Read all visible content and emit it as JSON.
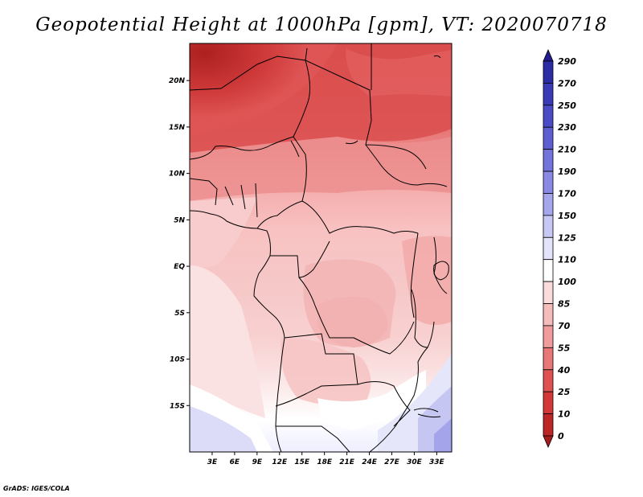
{
  "title": "Geopotential Height at 1000hPa [gpm], VT: 2020070718",
  "footer": "GrADS: IGES/COLA",
  "map": {
    "lon_range": [
      0,
      35
    ],
    "lat_range": [
      -20,
      24
    ],
    "lon_ticks": [
      3,
      6,
      9,
      12,
      15,
      18,
      21,
      24,
      27,
      30,
      33
    ],
    "lon_tick_labels": [
      "3E",
      "6E",
      "9E",
      "12E",
      "15E",
      "18E",
      "21E",
      "24E",
      "27E",
      "30E",
      "33E"
    ],
    "lat_ticks": [
      20,
      15,
      10,
      5,
      0,
      -5,
      -10,
      -15
    ],
    "lat_tick_labels": [
      "20N",
      "15N",
      "10N",
      "5N",
      "EQ",
      "5S",
      "10S",
      "15S"
    ]
  },
  "colorbar": {
    "labels": [
      "290",
      "270",
      "250",
      "230",
      "210",
      "190",
      "170",
      "150",
      "125",
      "110",
      "100",
      "85",
      "70",
      "55",
      "40",
      "25",
      "10",
      "0"
    ],
    "colors": [
      "#241c8c",
      "#2c2ca4",
      "#3a3ab8",
      "#4b4bc6",
      "#5e5ed2",
      "#7373dc",
      "#8a8ae4",
      "#a6a6ec",
      "#c8c8f4",
      "#e4e4fa",
      "#ffffff",
      "#fadcdc",
      "#f6bcbc",
      "#f09c9c",
      "#e87878",
      "#e05252",
      "#d23838",
      "#bc2626",
      "#a41c1c"
    ]
  }
}
